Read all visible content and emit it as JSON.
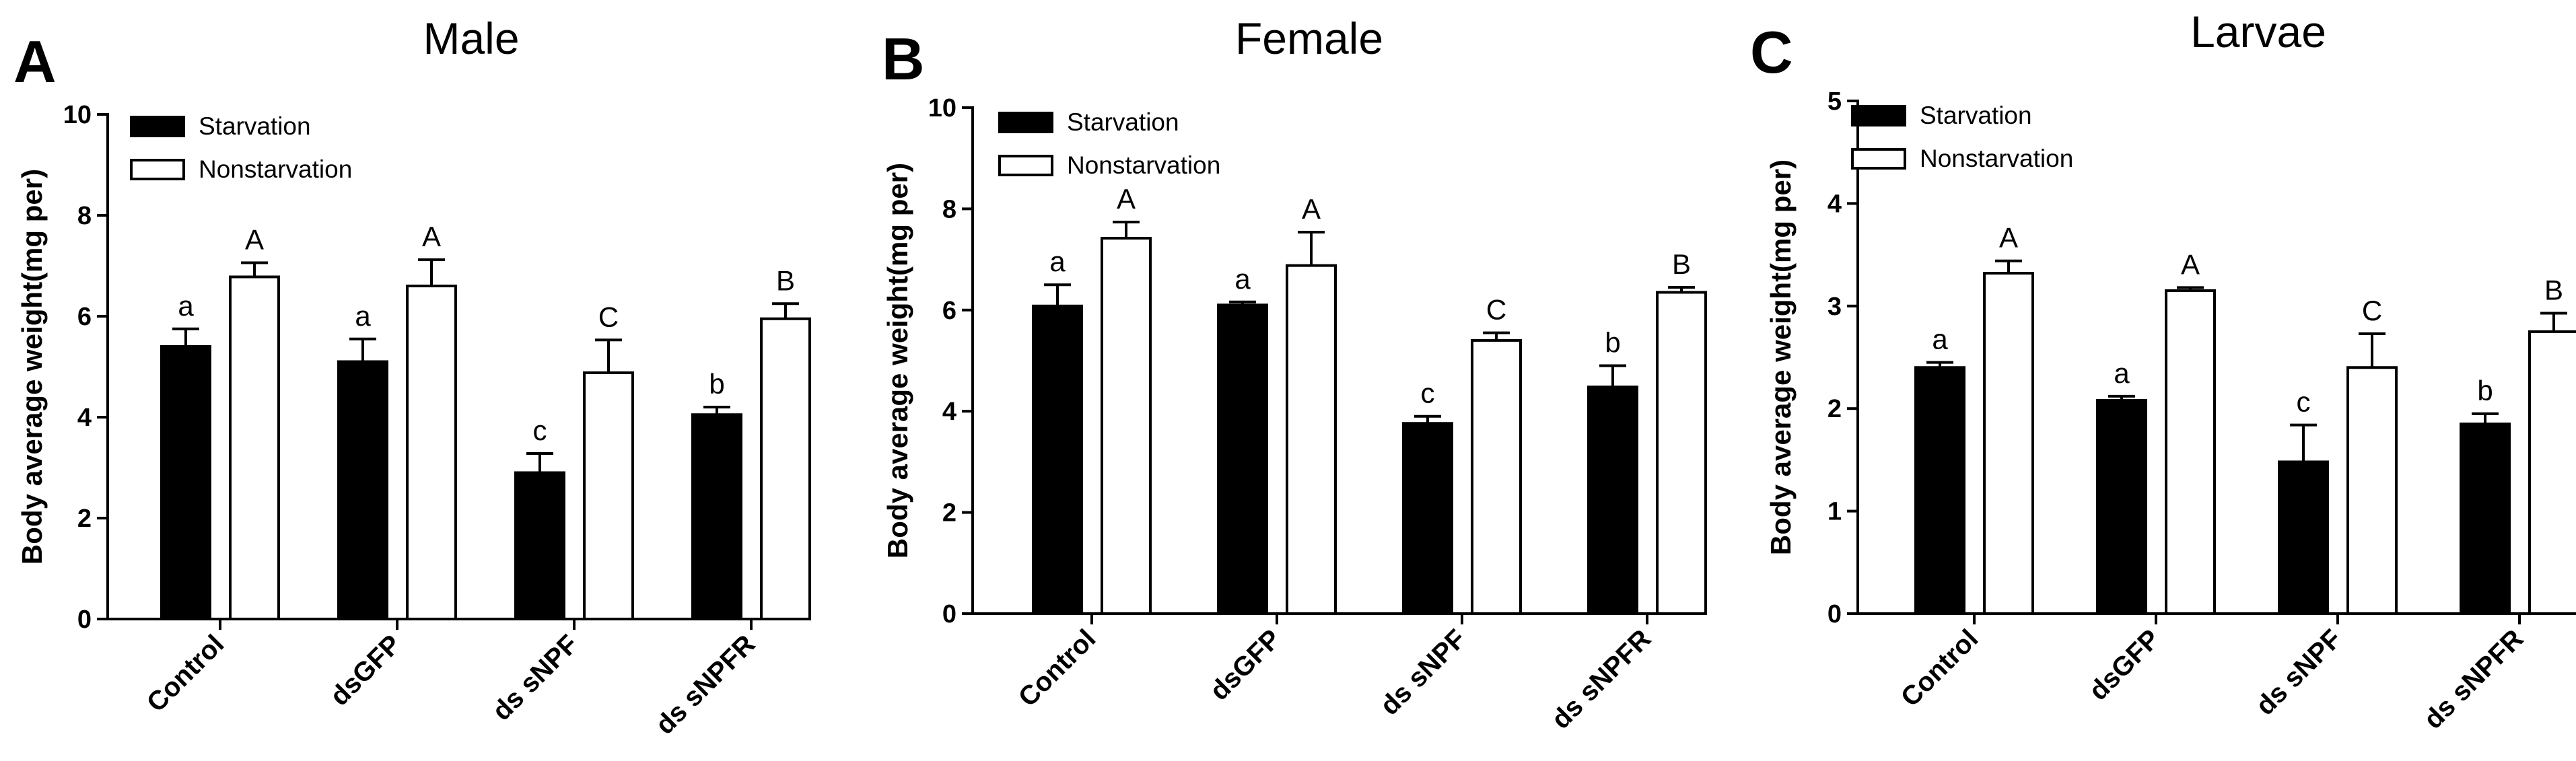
{
  "colors": {
    "starvation": "#000000",
    "nonstarvation": "#ffffff",
    "stroke": "#000000"
  },
  "chart_data": [
    {
      "type": "bar",
      "panel": "A",
      "title": "Male",
      "ylabel": "Body average weight(mg per)",
      "xlabel": "",
      "ylim": [
        0,
        10
      ],
      "yticks": [
        0,
        2,
        4,
        6,
        8,
        10
      ],
      "categories": [
        "Control",
        "dsGFP",
        "ds sNPF",
        "ds sNPFR"
      ],
      "legend": [
        "Starvation",
        "Nonstarvation"
      ],
      "series": [
        {
          "name": "Starvation",
          "values": [
            5.4,
            5.1,
            2.9,
            4.05
          ],
          "errors": [
            0.35,
            0.45,
            0.38,
            0.15
          ],
          "labels": [
            "a",
            "a",
            "c",
            "b"
          ]
        },
        {
          "name": "Nonstarvation",
          "values": [
            6.78,
            6.6,
            4.88,
            5.95
          ],
          "errors": [
            0.28,
            0.52,
            0.65,
            0.3
          ],
          "labels": [
            "A",
            "A",
            "C",
            "B"
          ]
        }
      ]
    },
    {
      "type": "bar",
      "panel": "B",
      "title": "Female",
      "ylabel": "Body average weight(mg per)",
      "xlabel": "",
      "ylim": [
        0,
        10
      ],
      "yticks": [
        0,
        2,
        4,
        6,
        8,
        10
      ],
      "categories": [
        "Control",
        "dsGFP",
        "ds sNPF",
        "ds sNPFR"
      ],
      "legend": [
        "Starvation",
        "Nonstarvation"
      ],
      "series": [
        {
          "name": "Starvation",
          "values": [
            6.08,
            6.1,
            3.76,
            4.48
          ],
          "errors": [
            0.42,
            0.06,
            0.14,
            0.42
          ],
          "labels": [
            "a",
            "a",
            "c",
            "b"
          ]
        },
        {
          "name": "Nonstarvation",
          "values": [
            7.42,
            6.88,
            5.4,
            6.35
          ],
          "errors": [
            0.32,
            0.66,
            0.15,
            0.1
          ],
          "labels": [
            "A",
            "A",
            "C",
            "B"
          ]
        }
      ]
    },
    {
      "type": "bar",
      "panel": "C",
      "title": "Larvae",
      "ylabel": "Body average weight(mg per)",
      "xlabel": "",
      "ylim": [
        0,
        5
      ],
      "yticks": [
        0,
        1,
        2,
        3,
        4,
        5
      ],
      "categories": [
        "Control",
        "dsGFP",
        "ds sNPF",
        "ds sNPFR"
      ],
      "legend": [
        "Starvation",
        "Nonstarvation"
      ],
      "series": [
        {
          "name": "Starvation",
          "values": [
            2.4,
            2.08,
            1.48,
            1.85
          ],
          "errors": [
            0.05,
            0.04,
            0.36,
            0.1
          ],
          "labels": [
            "a",
            "a",
            "c",
            "b"
          ]
        },
        {
          "name": "Nonstarvation",
          "values": [
            3.32,
            3.15,
            2.4,
            2.75
          ],
          "errors": [
            0.12,
            0.03,
            0.33,
            0.18
          ],
          "labels": [
            "A",
            "A",
            "C",
            "B"
          ]
        }
      ]
    }
  ]
}
